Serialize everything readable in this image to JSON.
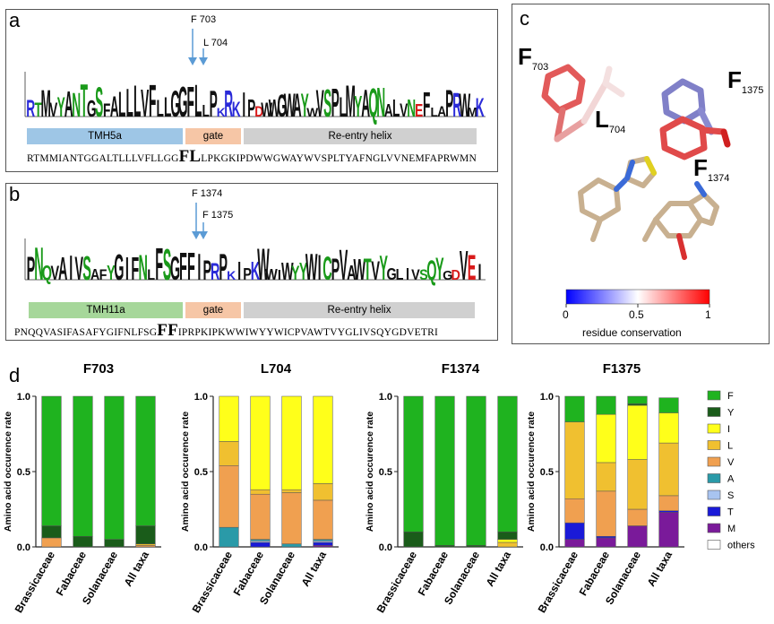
{
  "panel_a": {
    "label": "a",
    "mutation_1": "F 703",
    "mutation_2": "L 704",
    "regions": [
      {
        "label": "TMH5a",
        "color": "#9ec6e6"
      },
      {
        "label": "gate",
        "color": "#f6c6a6"
      },
      {
        "label": "Re-entry helix",
        "color": "#d0d0d0"
      }
    ],
    "seq_left": "RTMMIANTGGALTLLLVFLLGG",
    "seq_highlight": "FL",
    "seq_right": "LPKGKIPDWWGWAYWVSPLTYAFNGLVVNEMFAPRWMN",
    "logo_letters": "RTMVYANTGSFALLLVFLLGGFLLPKRKIPDWWGWAYWVSPLMYAQNALVNEFLAPRWMK"
  },
  "panel_b": {
    "label": "b",
    "mutation_1": "F 1374",
    "mutation_2": "F 1375",
    "regions": [
      {
        "label": "TMH11a",
        "color": "#a6d79a"
      },
      {
        "label": "gate",
        "color": "#f6c6a6"
      },
      {
        "label": "Re-entry helix",
        "color": "#d0d0d0"
      }
    ],
    "seq_left": "PNQQVASIFASAFYGIFNLFSG",
    "seq_highlight": "FF",
    "seq_right": "IPRPKIPKWWIWYYWICPVAWTVYGLIVSQYGDVETRI",
    "logo_letters": "PNQVAIVSAFYGIFNLFSGFFIPRPKIPKWWIWYYWICPVAWTVYGLIVSQYGDVEI"
  },
  "panel_c": {
    "label": "c",
    "residues": [
      {
        "name": "F",
        "sub": "703"
      },
      {
        "name": "L",
        "sub": "704"
      },
      {
        "name": "F",
        "sub": "1375"
      },
      {
        "name": "F",
        "sub": "1374"
      }
    ],
    "colorbar": {
      "min": "0",
      "mid": "0.5",
      "max": "1",
      "label": "residue conservation",
      "low_color": "#0000ff",
      "mid_color": "#ffffff",
      "high_color": "#ff0000"
    }
  },
  "panel_d": {
    "label": "d"
  },
  "chart_data": [
    {
      "type": "bar",
      "stacked": true,
      "title": "F703",
      "ylabel": "Amino acid occurence rate",
      "ylim": [
        0,
        1
      ],
      "yticks": [
        "0.0",
        "0.5",
        "1.0"
      ],
      "categories": [
        "Brassicaceae",
        "Fabaceae",
        "Solanaceae",
        "All taxa"
      ],
      "series": [
        {
          "name": "M",
          "values": [
            0,
            0,
            0,
            0
          ]
        },
        {
          "name": "T",
          "values": [
            0,
            0,
            0,
            0
          ]
        },
        {
          "name": "S",
          "values": [
            0,
            0,
            0,
            0
          ]
        },
        {
          "name": "A",
          "values": [
            0,
            0,
            0,
            0
          ]
        },
        {
          "name": "V",
          "values": [
            0.06,
            0,
            0,
            0.01
          ]
        },
        {
          "name": "L",
          "values": [
            0,
            0,
            0,
            0.01
          ]
        },
        {
          "name": "I",
          "values": [
            0,
            0,
            0,
            0
          ]
        },
        {
          "name": "Y",
          "values": [
            0.08,
            0.07,
            0.05,
            0.12
          ]
        },
        {
          "name": "F",
          "values": [
            0.86,
            0.93,
            0.95,
            0.86
          ]
        }
      ]
    },
    {
      "type": "bar",
      "stacked": true,
      "title": "L704",
      "ylabel": "Amino acid occurence rate",
      "ylim": [
        0,
        1
      ],
      "yticks": [
        "0.0",
        "0.5",
        "1.0"
      ],
      "categories": [
        "Brassicaceae",
        "Fabaceae",
        "Solanaceae",
        "All taxa"
      ],
      "series": [
        {
          "name": "M",
          "values": [
            0,
            0,
            0,
            0.01
          ]
        },
        {
          "name": "T",
          "values": [
            0,
            0.03,
            0,
            0.02
          ]
        },
        {
          "name": "S",
          "values": [
            0,
            0.01,
            0,
            0.01
          ]
        },
        {
          "name": "A",
          "values": [
            0.13,
            0.01,
            0.02,
            0.01
          ]
        },
        {
          "name": "V",
          "values": [
            0.41,
            0.3,
            0.34,
            0.26
          ]
        },
        {
          "name": "L",
          "values": [
            0.16,
            0.03,
            0.02,
            0.11
          ]
        },
        {
          "name": "I",
          "values": [
            0.3,
            0.62,
            0.62,
            0.58
          ]
        },
        {
          "name": "Y",
          "values": [
            0,
            0,
            0,
            0
          ]
        },
        {
          "name": "F",
          "values": [
            0,
            0,
            0,
            0
          ]
        }
      ]
    },
    {
      "type": "bar",
      "stacked": true,
      "title": "F1374",
      "ylabel": "Amino acid occurence rate",
      "ylim": [
        0,
        1
      ],
      "yticks": [
        "0.0",
        "0.5",
        "1.0"
      ],
      "categories": [
        "Brassicaceae",
        "Fabaceae",
        "Solanaceae",
        "All taxa"
      ],
      "series": [
        {
          "name": "M",
          "values": [
            0,
            0,
            0,
            0
          ]
        },
        {
          "name": "T",
          "values": [
            0,
            0,
            0,
            0
          ]
        },
        {
          "name": "S",
          "values": [
            0,
            0,
            0,
            0
          ]
        },
        {
          "name": "A",
          "values": [
            0,
            0,
            0,
            0
          ]
        },
        {
          "name": "V",
          "values": [
            0,
            0,
            0,
            0
          ]
        },
        {
          "name": "L",
          "values": [
            0,
            0,
            0,
            0.03
          ]
        },
        {
          "name": "I",
          "values": [
            0,
            0,
            0,
            0.02
          ]
        },
        {
          "name": "Y",
          "values": [
            0.1,
            0.01,
            0.01,
            0.05
          ]
        },
        {
          "name": "F",
          "values": [
            0.9,
            0.99,
            0.99,
            0.9
          ]
        }
      ]
    },
    {
      "type": "bar",
      "stacked": true,
      "title": "F1375",
      "ylabel": "Amino acid occurence rate",
      "ylim": [
        0,
        1
      ],
      "yticks": [
        "0.0",
        "0.5",
        "1.0"
      ],
      "categories": [
        "Brassicaceae",
        "Fabaceae",
        "Solanaceae",
        "All taxa"
      ],
      "series": [
        {
          "name": "M",
          "values": [
            0.05,
            0.06,
            0.14,
            0.23
          ]
        },
        {
          "name": "T",
          "values": [
            0.11,
            0.01,
            0,
            0.01
          ]
        },
        {
          "name": "S",
          "values": [
            0,
            0,
            0,
            0
          ]
        },
        {
          "name": "A",
          "values": [
            0,
            0,
            0,
            0
          ]
        },
        {
          "name": "V",
          "values": [
            0.16,
            0.3,
            0.11,
            0.1
          ]
        },
        {
          "name": "L",
          "values": [
            0.51,
            0.19,
            0.33,
            0.35
          ]
        },
        {
          "name": "I",
          "values": [
            0,
            0.32,
            0.36,
            0.2
          ]
        },
        {
          "name": "Y",
          "values": [
            0,
            0,
            0.01,
            0
          ]
        },
        {
          "name": "F",
          "values": [
            0.17,
            0.12,
            0.05,
            0.1
          ]
        }
      ]
    }
  ],
  "legend": [
    {
      "name": "F",
      "color": "#1fb31f"
    },
    {
      "name": "Y",
      "color": "#1a5c1a"
    },
    {
      "name": "I",
      "color": "#ffff1a"
    },
    {
      "name": "L",
      "color": "#f0c030"
    },
    {
      "name": "V",
      "color": "#f0a050"
    },
    {
      "name": "A",
      "color": "#2a9aa8"
    },
    {
      "name": "S",
      "color": "#a8c4f0"
    },
    {
      "name": "T",
      "color": "#1a1ad8"
    },
    {
      "name": "M",
      "color": "#7a1a9a"
    },
    {
      "name": "others",
      "color": "#ffffff"
    }
  ]
}
